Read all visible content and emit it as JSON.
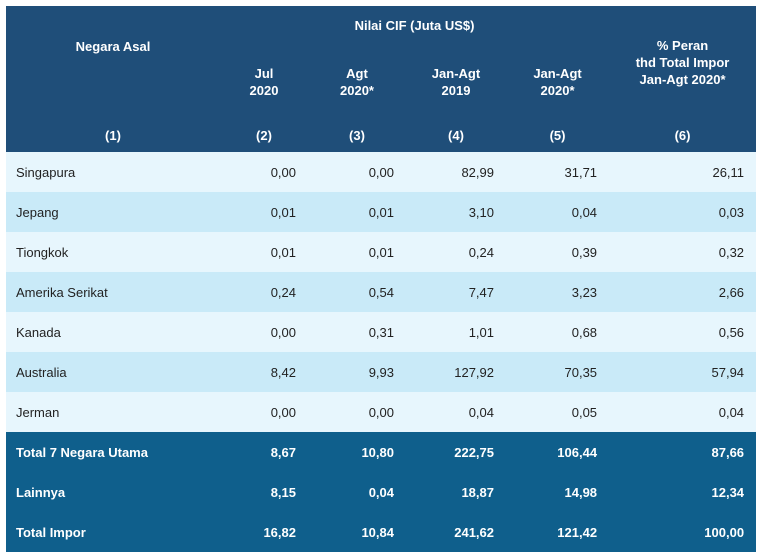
{
  "header": {
    "col1": "Negara Asal",
    "group": "Nilai CIF (Juta US$)",
    "col2": [
      "Jul",
      "2020"
    ],
    "col3": [
      "Agt",
      "2020*"
    ],
    "col4": [
      "Jan-Agt",
      "2019"
    ],
    "col5": [
      "Jan-Agt",
      "2020*"
    ],
    "col6": [
      "% Peran",
      "thd Total Impor",
      "Jan-Agt 2020*"
    ],
    "nums": [
      "(1)",
      "(2)",
      "(3)",
      "(4)",
      "(5)",
      "(6)"
    ]
  },
  "rows": [
    {
      "name": "Singapura",
      "v": [
        "0,00",
        "0,00",
        "82,99",
        "31,71",
        "26,11"
      ]
    },
    {
      "name": "Jepang",
      "v": [
        "0,01",
        "0,01",
        "3,10",
        "0,04",
        "0,03"
      ]
    },
    {
      "name": "Tiongkok",
      "v": [
        "0,01",
        "0,01",
        "0,24",
        "0,39",
        "0,32"
      ]
    },
    {
      "name": "Amerika Serikat",
      "v": [
        "0,24",
        "0,54",
        "7,47",
        "3,23",
        "2,66"
      ]
    },
    {
      "name": "Kanada",
      "v": [
        "0,00",
        "0,31",
        "1,01",
        "0,68",
        "0,56"
      ]
    },
    {
      "name": "Australia",
      "v": [
        "8,42",
        "9,93",
        "127,92",
        "70,35",
        "57,94"
      ]
    },
    {
      "name": "Jerman",
      "v": [
        "0,00",
        "0,00",
        "0,04",
        "0,05",
        "0,04"
      ]
    }
  ],
  "totals": [
    {
      "name": "Total 7 Negara Utama",
      "v": [
        "8,67",
        "10,80",
        "222,75",
        "106,44",
        "87,66"
      ]
    },
    {
      "name": "Lainnya",
      "v": [
        "8,15",
        "0,04",
        "18,87",
        "14,98",
        "12,34"
      ]
    },
    {
      "name": "Total Impor",
      "v": [
        "16,82",
        "10,84",
        "241,62",
        "121,42",
        "100,00"
      ]
    }
  ]
}
